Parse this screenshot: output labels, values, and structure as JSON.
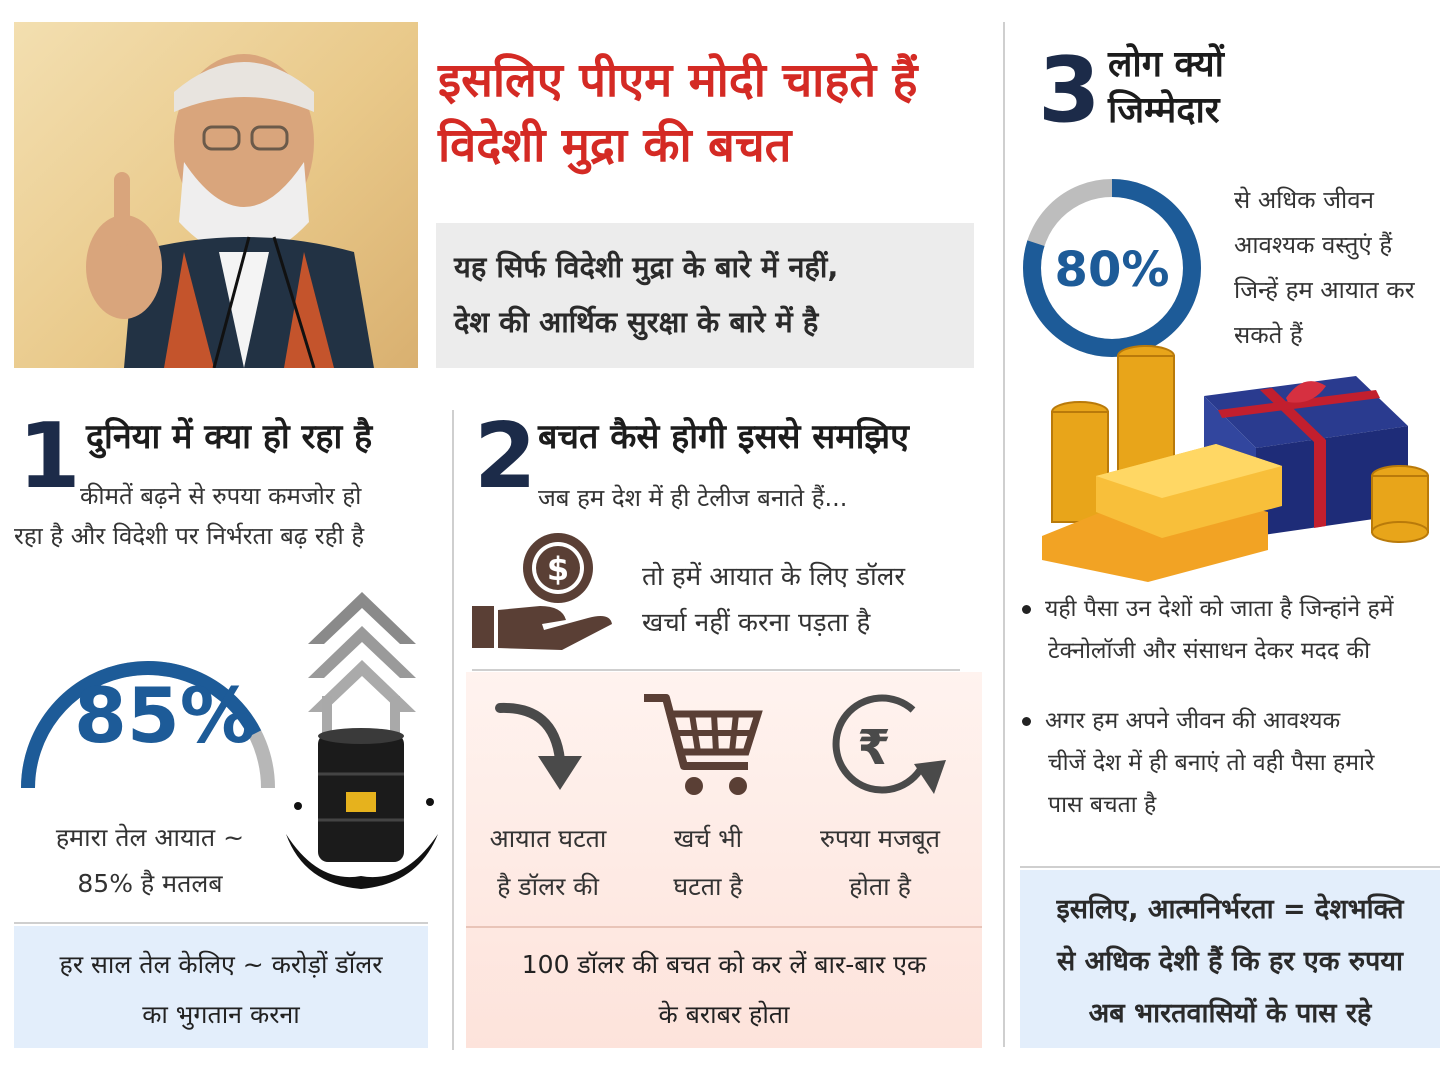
{
  "header": {
    "title_line1": "इसलिए पीएम मोदी चाहते हैं",
    "title_line2": "विदेशी मुद्रा की बचत",
    "subtitle_line1": "यह सिर्फ विदेशी मुद्रा के बारे में नहीं,",
    "subtitle_line2": "देश की आर्थिक सुरक्षा के बारे में है"
  },
  "section1": {
    "number": "1",
    "heading": "दुनिया में क्या हो रहा है",
    "text_line1": "कीमतें बढ़ने से रुपया कमजोर हो",
    "text_line2": "रहा है और विदेशी पर निर्भरता बढ़ रही है",
    "percent_label": "85%",
    "percent_value": 85,
    "caption_line1": "हमारा तेल आयात ~",
    "caption_line2": "85% है मतलब",
    "footer_line1": "हर साल तेल केलिए ~ करोड़ों डॉलर",
    "footer_line2": "का भुगतान करना"
  },
  "section2": {
    "number": "2",
    "heading": "बचत कैसे होगी इससे समझिए",
    "intro": "जब हम देश में ही टेलीज बनाते हैं...",
    "hand_text_line1": "तो हमें आयात के लिए डॉलर",
    "hand_text_line2": "खर्चा नहीं करना पड़ता है",
    "items": [
      {
        "line1": "आयात घटता",
        "line2": "है डॉलर की"
      },
      {
        "line1": "खर्च भी",
        "line2": "घटता है"
      },
      {
        "line1": "रुपया मजबूत",
        "line2": "होता है"
      }
    ],
    "footer_line1": "100 डॉलर की बचत को कर लें बार-बार एक",
    "footer_line2": "के बराबर होता"
  },
  "section3": {
    "number": "3",
    "heading_line1": "लोग क्यों",
    "heading_line2": "जिम्मेदार",
    "percent_label": "80%",
    "percent_value": 80,
    "desc_line1": "से अधिक जीवन",
    "desc_line2": "आवश्यक वस्तुएं हैं",
    "desc_line3": "जिन्हें हम आयात कर",
    "desc_line4": "सकते हैं",
    "bullets": [
      {
        "line1": "यही पैसा उन देशों को जाता है जिन्हांने हमें",
        "line2": "टेक्नोलॉजी और संसाधन देकर मदद की"
      },
      {
        "line1": "अगर हम अपने जीवन की आवश्यक",
        "line2": "चीजें देश में ही बनाएं तो वही पैसा हमारे",
        "line3": "पास बचता है"
      }
    ],
    "footer_line1": "इसलिए, आत्मनिर्भरता = देशभक्ति",
    "footer_line2": "से अधिक देशी हैं कि हर एक रुपया",
    "footer_line3": "अब भारतवासियों के पास रहे"
  },
  "icons": {
    "dollar_symbol": "$",
    "rupee_symbol": "₹"
  },
  "colors": {
    "title_red": "#d42a24",
    "accent_blue": "#1d5b98",
    "navy": "#1c2b49",
    "panel_blue": "#e3eefb",
    "panel_pink": "#fde3db"
  }
}
